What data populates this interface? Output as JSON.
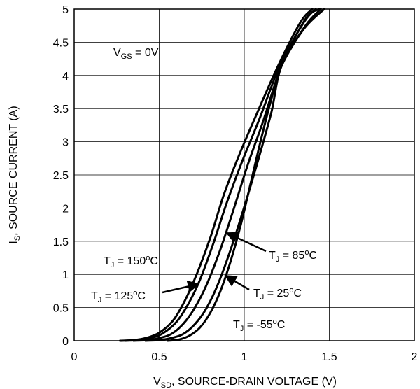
{
  "chart_data": {
    "type": "line",
    "title": "",
    "xlabel": {
      "main": "V",
      "sub": "SD",
      "rest": ", SOURCE-DRAIN VOLTAGE (V)"
    },
    "ylabel": {
      "main": "I",
      "sub": "S",
      "rest": ", SOURCE CURRENT (A)"
    },
    "xlim": [
      0,
      2
    ],
    "ylim": [
      0,
      5
    ],
    "x_ticks": [
      0,
      0.5,
      1,
      1.5,
      2
    ],
    "x_tick_labels": [
      "0",
      "0.5",
      "1",
      "1.5",
      "2"
    ],
    "y_ticks": [
      0,
      0.5,
      1,
      1.5,
      2,
      2.5,
      3,
      3.5,
      4,
      4.5,
      5
    ],
    "y_tick_labels": [
      "0",
      "0.5",
      "1",
      "1.5",
      "2",
      "2.5",
      "3",
      "3.5",
      "4",
      "4.5",
      "5"
    ],
    "grid": true,
    "line_color": "#000000",
    "series": [
      {
        "name": "TJ = 150°C",
        "x": [
          0.27,
          0.35,
          0.42,
          0.5,
          0.58,
          0.65,
          0.72,
          0.8,
          0.88,
          0.97,
          1.07,
          1.2,
          1.33,
          1.4
        ],
        "y": [
          0,
          0.01,
          0.04,
          0.12,
          0.3,
          0.6,
          1.0,
          1.55,
          2.2,
          2.8,
          3.4,
          4.15,
          4.8,
          5.0
        ]
      },
      {
        "name": "TJ = 125°C",
        "x": [
          0.3,
          0.38,
          0.45,
          0.52,
          0.6,
          0.67,
          0.74,
          0.82,
          0.9,
          0.99,
          1.09,
          1.21,
          1.35,
          1.42
        ],
        "y": [
          0,
          0.01,
          0.04,
          0.11,
          0.28,
          0.55,
          0.92,
          1.48,
          2.1,
          2.72,
          3.35,
          4.15,
          4.8,
          5.0
        ]
      },
      {
        "name": "TJ = 85°C",
        "x": [
          0.35,
          0.43,
          0.5,
          0.57,
          0.64,
          0.71,
          0.78,
          0.86,
          0.94,
          1.02,
          1.11,
          1.22,
          1.36,
          1.44
        ],
        "y": [
          0,
          0.01,
          0.04,
          0.1,
          0.25,
          0.5,
          0.85,
          1.38,
          2.0,
          2.65,
          3.3,
          4.15,
          4.85,
          5.0
        ]
      },
      {
        "name": "TJ = 25°C",
        "x": [
          0.42,
          0.5,
          0.57,
          0.64,
          0.71,
          0.78,
          0.85,
          0.93,
          1.01,
          1.09,
          1.16,
          1.22,
          1.36,
          1.45
        ],
        "y": [
          0,
          0.01,
          0.04,
          0.1,
          0.25,
          0.5,
          0.88,
          1.45,
          2.1,
          2.8,
          3.45,
          4.15,
          4.75,
          5.0
        ]
      },
      {
        "name": "TJ = -55°C",
        "x": [
          0.55,
          0.62,
          0.68,
          0.74,
          0.8,
          0.86,
          0.92,
          0.98,
          1.04,
          1.1,
          1.16,
          1.22,
          1.35,
          1.47
        ],
        "y": [
          0,
          0.02,
          0.08,
          0.2,
          0.42,
          0.75,
          1.2,
          1.75,
          2.4,
          3.05,
          3.65,
          4.15,
          4.7,
          5.0
        ]
      }
    ],
    "annotations": [
      {
        "main": "V",
        "sub": "GS",
        "rest": " = 0V"
      },
      {
        "main": "T",
        "sub": "J",
        "rest": " = 150",
        "sup": "o",
        "unit": "C"
      },
      {
        "main": "T",
        "sub": "J",
        "rest": " = 125",
        "sup": "o",
        "unit": "C"
      },
      {
        "main": "T",
        "sub": "J",
        "rest": " = 85",
        "sup": "o",
        "unit": "C"
      },
      {
        "main": "T",
        "sub": "J",
        "rest": " = 25",
        "sup": "o",
        "unit": "C"
      },
      {
        "main": "T",
        "sub": "J",
        "rest": " = -55",
        "sup": "o",
        "unit": "C"
      }
    ]
  }
}
